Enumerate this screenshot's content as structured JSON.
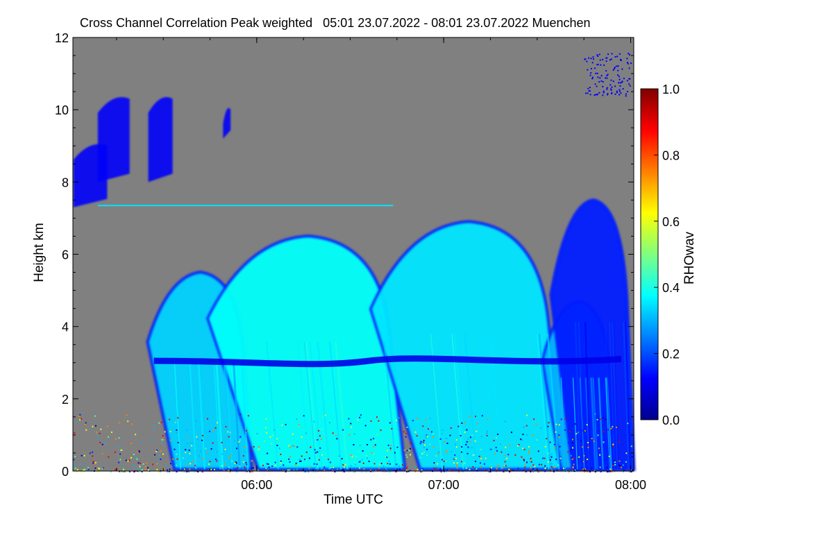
{
  "chart_data": {
    "type": "heatmap",
    "title": "Cross Channel Correlation Peak weighted   05:01 23.07.2022 - 08:01 23.07.2022 Muenchen",
    "xlabel": "Time UTC",
    "ylabel": "Height km",
    "x_ticks": [
      "06:00",
      "07:00",
      "08:00"
    ],
    "x_tick_values_hours": [
      6.0,
      7.0,
      8.0
    ],
    "xlim_hours": [
      5.0167,
      8.0167
    ],
    "y_ticks": [
      0,
      2,
      4,
      6,
      8,
      10,
      12
    ],
    "ylim": [
      0,
      12
    ],
    "colorbar": {
      "label": "RHOwav",
      "ticks": [
        "0.0",
        "0.2",
        "0.4",
        "0.6",
        "0.8",
        "1.0"
      ],
      "range": [
        0,
        1
      ],
      "colormap": "jet"
    },
    "background_color": "#808080",
    "features": {
      "cloud_columns": [
        {
          "start_h": 5.45,
          "end_h": 5.95,
          "top_km": 5.5,
          "rho": 0.33
        },
        {
          "start_h": 5.8,
          "end_h": 6.75,
          "top_km": 6.5,
          "rho": 0.38
        },
        {
          "start_h": 6.67,
          "end_h": 7.6,
          "top_km": 6.9,
          "rho": 0.35
        },
        {
          "start_h": 7.55,
          "end_h": 7.9,
          "top_km": 4.7,
          "rho": 0.3
        },
        {
          "start_h": 7.6,
          "end_h": 8.0,
          "top_km": 7.5,
          "rho": 0.15
        }
      ],
      "cirrus_patches": [
        {
          "start_h": 5.02,
          "end_h": 5.2,
          "bottom_km": 7.3,
          "top_km": 9.0,
          "rho": 0.12
        },
        {
          "start_h": 5.15,
          "end_h": 5.32,
          "bottom_km": 8.0,
          "top_km": 10.3,
          "rho": 0.12
        },
        {
          "start_h": 5.42,
          "end_h": 5.55,
          "bottom_km": 8.0,
          "top_km": 10.3,
          "rho": 0.12
        },
        {
          "start_h": 5.82,
          "end_h": 5.86,
          "bottom_km": 9.2,
          "top_km": 10.0,
          "rho": 0.12
        }
      ],
      "melting_layer_km": 3.0,
      "residual_layer_km": 7.35
    }
  }
}
